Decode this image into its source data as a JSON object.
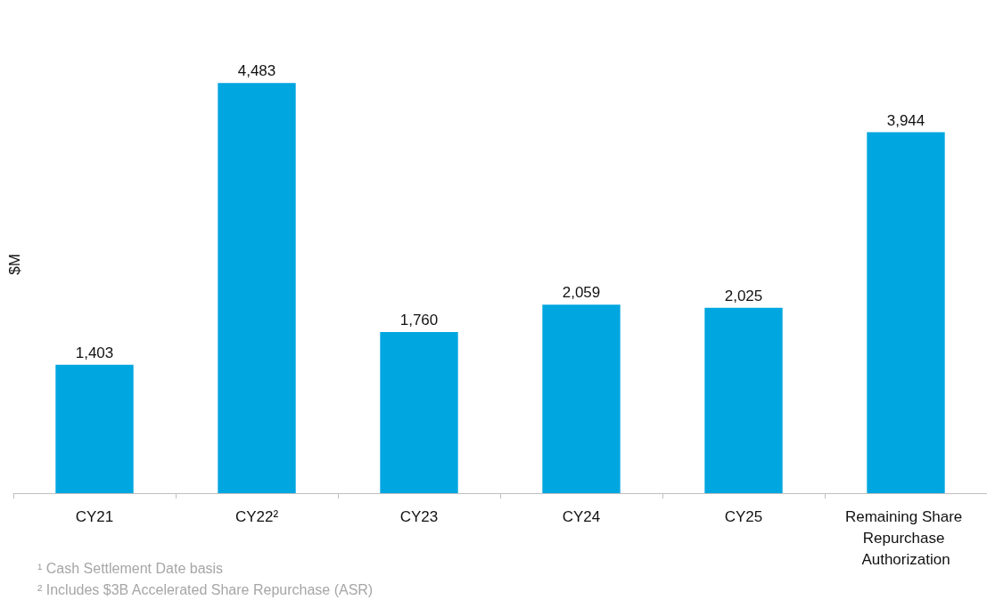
{
  "chart_data": {
    "type": "bar",
    "categories": [
      "CY21",
      "CY22²",
      "CY23",
      "CY24",
      "CY25",
      "Remaining Share Repurchase Authorization"
    ],
    "values": [
      1403,
      4483,
      1760,
      2059,
      2025,
      3944
    ],
    "color": "#00a6e0",
    "ylabel": "$M",
    "value_labels": [
      "1,403",
      "4,483",
      "1,760",
      "2,059",
      "2,025",
      "3,944"
    ],
    "tick_labels": "x",
    "annotations": [
      "¹ Cash Settlement Date basis",
      "² Includes $3B Accelerated Share Repurchase (ASR)"
    ]
  }
}
